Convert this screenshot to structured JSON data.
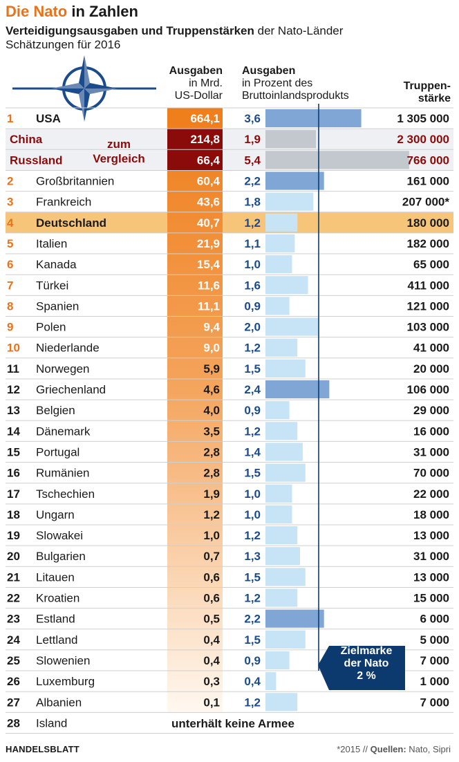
{
  "title": {
    "accent": "Die Nato",
    "rest": " in Zahlen"
  },
  "subtitle": {
    "bold": "Verteidigungsausgaben und Truppenstärken",
    "rest": " der Nato-Länder"
  },
  "subtitle2": "Schätzungen für 2016",
  "headers": {
    "spend_bold": "Ausgaben",
    "spend_l2": "in Mrd.",
    "spend_l3": "US-Dollar",
    "gdp_bold": "Ausgaben",
    "gdp_l2": "in Prozent des",
    "gdp_l3": "Bruttoinlandsprodukts",
    "troops_l1": "Truppen-",
    "troops_l2": "stärke"
  },
  "compare_label": {
    "l1": "zum",
    "l2": "Vergleich"
  },
  "target_label": {
    "l1": "Zielmarke",
    "l2": "der Nato",
    "l3": "2 %"
  },
  "no_army": "unterhält keine Armee",
  "footer": {
    "left": "HANDELSBLATT",
    "note": "*2015 // ",
    "sources_bold": "Quellen:",
    "sources": " Nato, Sipri"
  },
  "colors": {
    "orange_accent": "#e8731a",
    "orange_strong": "#ef7d1a",
    "dark_red": "#8b0a0a",
    "blue_text": "#1a4b8c",
    "bar_above_target": "#7fa6d4",
    "bar_below_target": "#c7e4f7",
    "bar_comparison": "#c3c8cf",
    "highlight_row": "#f7c57a",
    "target_line": "#0d3a6e",
    "comparison_bg": "#eef0f4"
  },
  "chart_data": {
    "type": "table",
    "gdp_target_percent": 2,
    "rows": [
      {
        "rank": "1",
        "name": "USA",
        "spend": "664,1",
        "spend_value": 664.1,
        "gdp": "3,6",
        "gdp_value": 3.6,
        "troops": "1 305 000",
        "kind": "nato"
      },
      {
        "rank": "",
        "name": "China",
        "spend": "214,8",
        "spend_value": 214.8,
        "gdp": "1,9",
        "gdp_value": 1.9,
        "troops": "2 300 000",
        "kind": "compare"
      },
      {
        "rank": "",
        "name": "Russland",
        "spend": "66,4",
        "spend_value": 66.4,
        "gdp": "5,4",
        "gdp_value": 5.4,
        "troops": "766 000",
        "kind": "compare"
      },
      {
        "rank": "2",
        "name": "Großbritannien",
        "spend": "60,4",
        "spend_value": 60.4,
        "gdp": "2,2",
        "gdp_value": 2.2,
        "troops": "161 000",
        "kind": "nato"
      },
      {
        "rank": "3",
        "name": "Frankreich",
        "spend": "43,6",
        "spend_value": 43.6,
        "gdp": "1,8",
        "gdp_value": 1.8,
        "troops": "207 000*",
        "kind": "nato"
      },
      {
        "rank": "4",
        "name": "Deutschland",
        "spend": "40,7",
        "spend_value": 40.7,
        "gdp": "1,2",
        "gdp_value": 1.2,
        "troops": "180 000",
        "kind": "highlight"
      },
      {
        "rank": "5",
        "name": "Italien",
        "spend": "21,9",
        "spend_value": 21.9,
        "gdp": "1,1",
        "gdp_value": 1.1,
        "troops": "182 000",
        "kind": "nato"
      },
      {
        "rank": "6",
        "name": "Kanada",
        "spend": "15,4",
        "spend_value": 15.4,
        "gdp": "1,0",
        "gdp_value": 1.0,
        "troops": "65 000",
        "kind": "nato"
      },
      {
        "rank": "7",
        "name": "Türkei",
        "spend": "11,6",
        "spend_value": 11.6,
        "gdp": "1,6",
        "gdp_value": 1.6,
        "troops": "411 000",
        "kind": "nato"
      },
      {
        "rank": "8",
        "name": "Spanien",
        "spend": "11,1",
        "spend_value": 11.1,
        "gdp": "0,9",
        "gdp_value": 0.9,
        "troops": "121 000",
        "kind": "nato"
      },
      {
        "rank": "9",
        "name": "Polen",
        "spend": "9,4",
        "spend_value": 9.4,
        "gdp": "2,0",
        "gdp_value": 2.0,
        "troops": "103 000",
        "kind": "nato"
      },
      {
        "rank": "10",
        "name": "Niederlande",
        "spend": "9,0",
        "spend_value": 9.0,
        "gdp": "1,2",
        "gdp_value": 1.2,
        "troops": "41 000",
        "kind": "nato"
      },
      {
        "rank": "11",
        "name": "Norwegen",
        "spend": "5,9",
        "spend_value": 5.9,
        "gdp": "1,5",
        "gdp_value": 1.5,
        "troops": "20 000",
        "kind": "nato"
      },
      {
        "rank": "12",
        "name": "Griechenland",
        "spend": "4,6",
        "spend_value": 4.6,
        "gdp": "2,4",
        "gdp_value": 2.4,
        "troops": "106 000",
        "kind": "nato"
      },
      {
        "rank": "13",
        "name": "Belgien",
        "spend": "4,0",
        "spend_value": 4.0,
        "gdp": "0,9",
        "gdp_value": 0.9,
        "troops": "29 000",
        "kind": "nato"
      },
      {
        "rank": "14",
        "name": "Dänemark",
        "spend": "3,5",
        "spend_value": 3.5,
        "gdp": "1,2",
        "gdp_value": 1.2,
        "troops": "16 000",
        "kind": "nato"
      },
      {
        "rank": "15",
        "name": "Portugal",
        "spend": "2,8",
        "spend_value": 2.8,
        "gdp": "1,4",
        "gdp_value": 1.4,
        "troops": "31 000",
        "kind": "nato"
      },
      {
        "rank": "16",
        "name": "Rumänien",
        "spend": "2,8",
        "spend_value": 2.8,
        "gdp": "1,5",
        "gdp_value": 1.5,
        "troops": "70 000",
        "kind": "nato"
      },
      {
        "rank": "17",
        "name": "Tschechien",
        "spend": "1,9",
        "spend_value": 1.9,
        "gdp": "1,0",
        "gdp_value": 1.0,
        "troops": "22 000",
        "kind": "nato"
      },
      {
        "rank": "18",
        "name": "Ungarn",
        "spend": "1,2",
        "spend_value": 1.2,
        "gdp": "1,0",
        "gdp_value": 1.0,
        "troops": "18 000",
        "kind": "nato"
      },
      {
        "rank": "19",
        "name": "Slowakei",
        "spend": "1,0",
        "spend_value": 1.0,
        "gdp": "1,2",
        "gdp_value": 1.2,
        "troops": "13 000",
        "kind": "nato"
      },
      {
        "rank": "20",
        "name": "Bulgarien",
        "spend": "0,7",
        "spend_value": 0.7,
        "gdp": "1,3",
        "gdp_value": 1.3,
        "troops": "31 000",
        "kind": "nato"
      },
      {
        "rank": "21",
        "name": "Litauen",
        "spend": "0,6",
        "spend_value": 0.6,
        "gdp": "1,5",
        "gdp_value": 1.5,
        "troops": "13 000",
        "kind": "nato"
      },
      {
        "rank": "22",
        "name": "Kroatien",
        "spend": "0,6",
        "spend_value": 0.6,
        "gdp": "1,2",
        "gdp_value": 1.2,
        "troops": "15 000",
        "kind": "nato"
      },
      {
        "rank": "23",
        "name": "Estland",
        "spend": "0,5",
        "spend_value": 0.5,
        "gdp": "2,2",
        "gdp_value": 2.2,
        "troops": "6 000",
        "kind": "nato"
      },
      {
        "rank": "24",
        "name": "Lettland",
        "spend": "0,4",
        "spend_value": 0.4,
        "gdp": "1,5",
        "gdp_value": 1.5,
        "troops": "5 000",
        "kind": "nato"
      },
      {
        "rank": "25",
        "name": "Slowenien",
        "spend": "0,4",
        "spend_value": 0.4,
        "gdp": "0,9",
        "gdp_value": 0.9,
        "troops": "7 000",
        "kind": "nato"
      },
      {
        "rank": "26",
        "name": "Luxemburg",
        "spend": "0,3",
        "spend_value": 0.3,
        "gdp": "0,4",
        "gdp_value": 0.4,
        "troops": "1 000",
        "kind": "nato"
      },
      {
        "rank": "27",
        "name": "Albanien",
        "spend": "0,1",
        "spend_value": 0.1,
        "gdp": "1,2",
        "gdp_value": 1.2,
        "troops": "7 000",
        "kind": "nato"
      },
      {
        "rank": "28",
        "name": "Island",
        "spend": "",
        "gdp": "",
        "troops": "",
        "kind": "noarmy"
      }
    ]
  }
}
